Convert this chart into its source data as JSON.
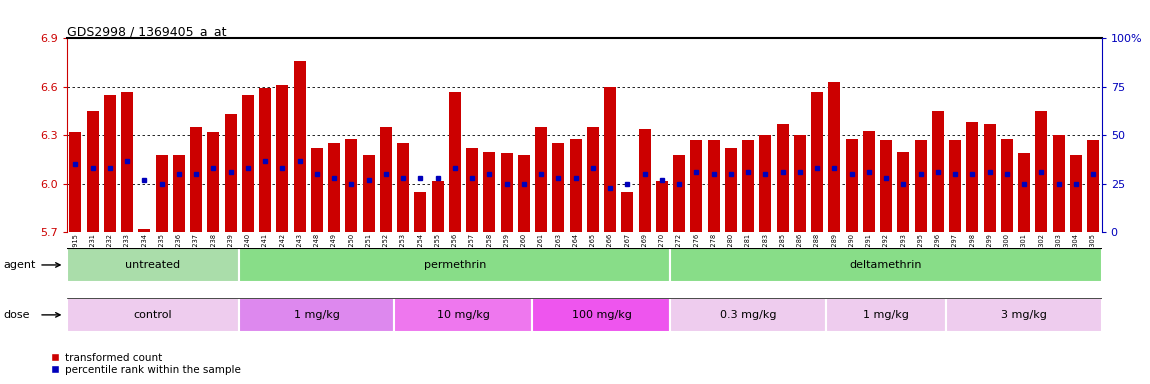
{
  "title": "GDS2998 / 1369405_a_at",
  "ylim": [
    5.7,
    6.9
  ],
  "yticks_left": [
    5.7,
    6.0,
    6.3,
    6.6,
    6.9
  ],
  "yticks_right": [
    0,
    25,
    50,
    75,
    100
  ],
  "ytick_right_labels": [
    "0",
    "25",
    "50",
    "75",
    "100%"
  ],
  "samples": [
    "GSM190915",
    "GSM195231",
    "GSM195232",
    "GSM195233",
    "GSM195234",
    "GSM195235",
    "GSM195236",
    "GSM195237",
    "GSM195238",
    "GSM195239",
    "GSM195240",
    "GSM195241",
    "GSM195242",
    "GSM195243",
    "GSM195248",
    "GSM195249",
    "GSM195250",
    "GSM195251",
    "GSM195252",
    "GSM195253",
    "GSM195254",
    "GSM195255",
    "GSM195256",
    "GSM195257",
    "GSM195258",
    "GSM195259",
    "GSM195260",
    "GSM195261",
    "GSM195263",
    "GSM195264",
    "GSM195265",
    "GSM195266",
    "GSM195267",
    "GSM195269",
    "GSM195270",
    "GSM195272",
    "GSM195276",
    "GSM195278",
    "GSM195280",
    "GSM195281",
    "GSM195283",
    "GSM195285",
    "GSM195286",
    "GSM195288",
    "GSM195289",
    "GSM195290",
    "GSM195291",
    "GSM195292",
    "GSM195293",
    "GSM195295",
    "GSM195296",
    "GSM195297",
    "GSM195298",
    "GSM195299",
    "GSM195300",
    "GSM195301",
    "GSM195302",
    "GSM195303",
    "GSM195304",
    "GSM195305"
  ],
  "red_values": [
    6.32,
    6.45,
    6.55,
    6.57,
    5.72,
    6.18,
    6.18,
    6.35,
    6.32,
    6.43,
    6.55,
    6.59,
    6.61,
    6.76,
    6.22,
    6.25,
    6.28,
    6.18,
    6.35,
    6.25,
    5.95,
    6.02,
    6.57,
    6.22,
    6.2,
    6.19,
    6.18,
    6.35,
    6.25,
    6.28,
    6.35,
    6.6,
    5.95,
    6.34,
    6.02,
    6.18,
    6.27,
    6.27,
    6.22,
    6.27,
    6.3,
    6.37,
    6.3,
    6.57,
    6.63,
    6.28,
    6.33,
    6.27,
    6.2,
    6.27,
    6.45,
    6.27,
    6.38,
    6.37,
    6.28,
    6.19,
    6.45,
    6.3,
    6.18,
    6.27
  ],
  "blue_pct": [
    35,
    33,
    33,
    37,
    27,
    25,
    30,
    30,
    33,
    31,
    33,
    37,
    33,
    37,
    30,
    28,
    25,
    27,
    30,
    28,
    28,
    28,
    33,
    28,
    30,
    25,
    25,
    30,
    28,
    28,
    33,
    23,
    25,
    30,
    27,
    25,
    31,
    30,
    30,
    31,
    30,
    31,
    31,
    33,
    33,
    30,
    31,
    28,
    25,
    30,
    31,
    30,
    30,
    31,
    30,
    25,
    31,
    25,
    25,
    30
  ],
  "bar_color": "#CC0000",
  "dot_color": "#0000BB",
  "agent_groups": [
    {
      "label": "untreated",
      "start": 0,
      "end": 10,
      "color": "#AADDAA"
    },
    {
      "label": "permethrin",
      "start": 10,
      "end": 35,
      "color": "#88DD88"
    },
    {
      "label": "deltamethrin",
      "start": 35,
      "end": 60,
      "color": "#88DD88"
    }
  ],
  "dose_groups": [
    {
      "label": "control",
      "start": 0,
      "end": 10,
      "color": "#EECCEE"
    },
    {
      "label": "1 mg/kg",
      "start": 10,
      "end": 19,
      "color": "#DD88EE"
    },
    {
      "label": "10 mg/kg",
      "start": 19,
      "end": 27,
      "color": "#EE77EE"
    },
    {
      "label": "100 mg/kg",
      "start": 27,
      "end": 35,
      "color": "#EE55EE"
    },
    {
      "label": "0.3 mg/kg",
      "start": 35,
      "end": 44,
      "color": "#EECCEE"
    },
    {
      "label": "1 mg/kg",
      "start": 44,
      "end": 51,
      "color": "#EECCEE"
    },
    {
      "label": "3 mg/kg",
      "start": 51,
      "end": 60,
      "color": "#EECCEE"
    }
  ]
}
